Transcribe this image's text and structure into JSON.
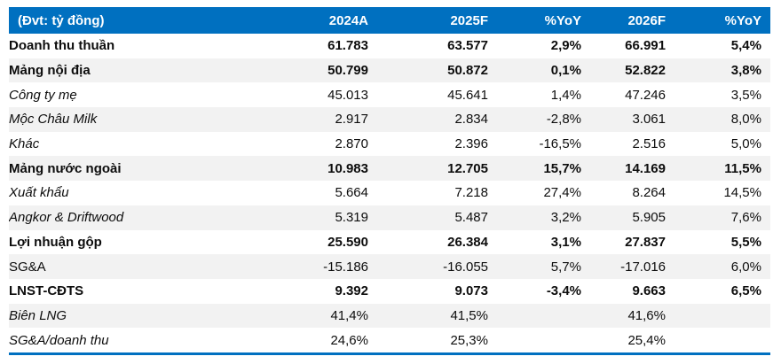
{
  "table": {
    "unit_label": "(Đvt: tỷ đồng)",
    "columns": [
      "2024A",
      "2025F",
      "%YoY",
      "2026F",
      "%YoY"
    ],
    "colors": {
      "header_bg": "#0070C0",
      "header_text": "#FFFFFF",
      "alt_row_bg": "#F2F2F2",
      "bottom_rule": "#0070C0",
      "body_text": "#0D0D0D"
    },
    "rows": [
      {
        "label": "Doanh thu thuần",
        "indent": 0,
        "bold": true,
        "italic": false,
        "values": [
          "61.783",
          "63.577",
          "2,9%",
          "66.991",
          "5,4%"
        ]
      },
      {
        "label": "Mảng nội địa",
        "indent": 1,
        "bold": true,
        "italic": false,
        "values": [
          "50.799",
          "50.872",
          "0,1%",
          "52.822",
          "3,8%"
        ]
      },
      {
        "label": "Công ty mẹ",
        "indent": 2,
        "bold": false,
        "italic": true,
        "values": [
          "45.013",
          "45.641",
          "1,4%",
          "47.246",
          "3,5%"
        ]
      },
      {
        "label": "Mộc Châu Milk",
        "indent": 2,
        "bold": false,
        "italic": true,
        "values": [
          "2.917",
          "2.834",
          "-2,8%",
          "3.061",
          "8,0%"
        ]
      },
      {
        "label": "Khác",
        "indent": 2,
        "bold": false,
        "italic": true,
        "values": [
          "2.870",
          "2.396",
          "-16,5%",
          "2.516",
          "5,0%"
        ]
      },
      {
        "label": "Mảng nước ngoài",
        "indent": 1,
        "bold": true,
        "italic": false,
        "values": [
          "10.983",
          "12.705",
          "15,7%",
          "14.169",
          "11,5%"
        ]
      },
      {
        "label": "Xuất khẩu",
        "indent": 2,
        "bold": false,
        "italic": true,
        "values": [
          "5.664",
          "7.218",
          "27,4%",
          "8.264",
          "14,5%"
        ]
      },
      {
        "label": "Angkor & Driftwood",
        "indent": 2,
        "bold": false,
        "italic": true,
        "values": [
          "5.319",
          "5.487",
          "3,2%",
          "5.905",
          "7,6%"
        ]
      },
      {
        "label": "Lợi nhuận gộp",
        "indent": 0,
        "bold": true,
        "italic": false,
        "values": [
          "25.590",
          "26.384",
          "3,1%",
          "27.837",
          "5,5%"
        ]
      },
      {
        "label": "SG&A",
        "indent": 0,
        "bold": false,
        "italic": false,
        "values": [
          "-15.186",
          "-16.055",
          "5,7%",
          "-17.016",
          "6,0%"
        ]
      },
      {
        "label": "LNST-CĐTS",
        "indent": 0,
        "bold": true,
        "italic": false,
        "values": [
          "9.392",
          "9.073",
          "-3,4%",
          "9.663",
          "6,5%"
        ]
      },
      {
        "label": "Biên LNG",
        "indent": 0,
        "bold": false,
        "italic": true,
        "values": [
          "41,4%",
          "41,5%",
          "",
          "41,6%",
          ""
        ]
      },
      {
        "label": "SG&A/doanh thu",
        "indent": 0,
        "bold": false,
        "italic": true,
        "values": [
          "24,6%",
          "25,3%",
          "",
          "25,4%",
          ""
        ]
      }
    ]
  }
}
